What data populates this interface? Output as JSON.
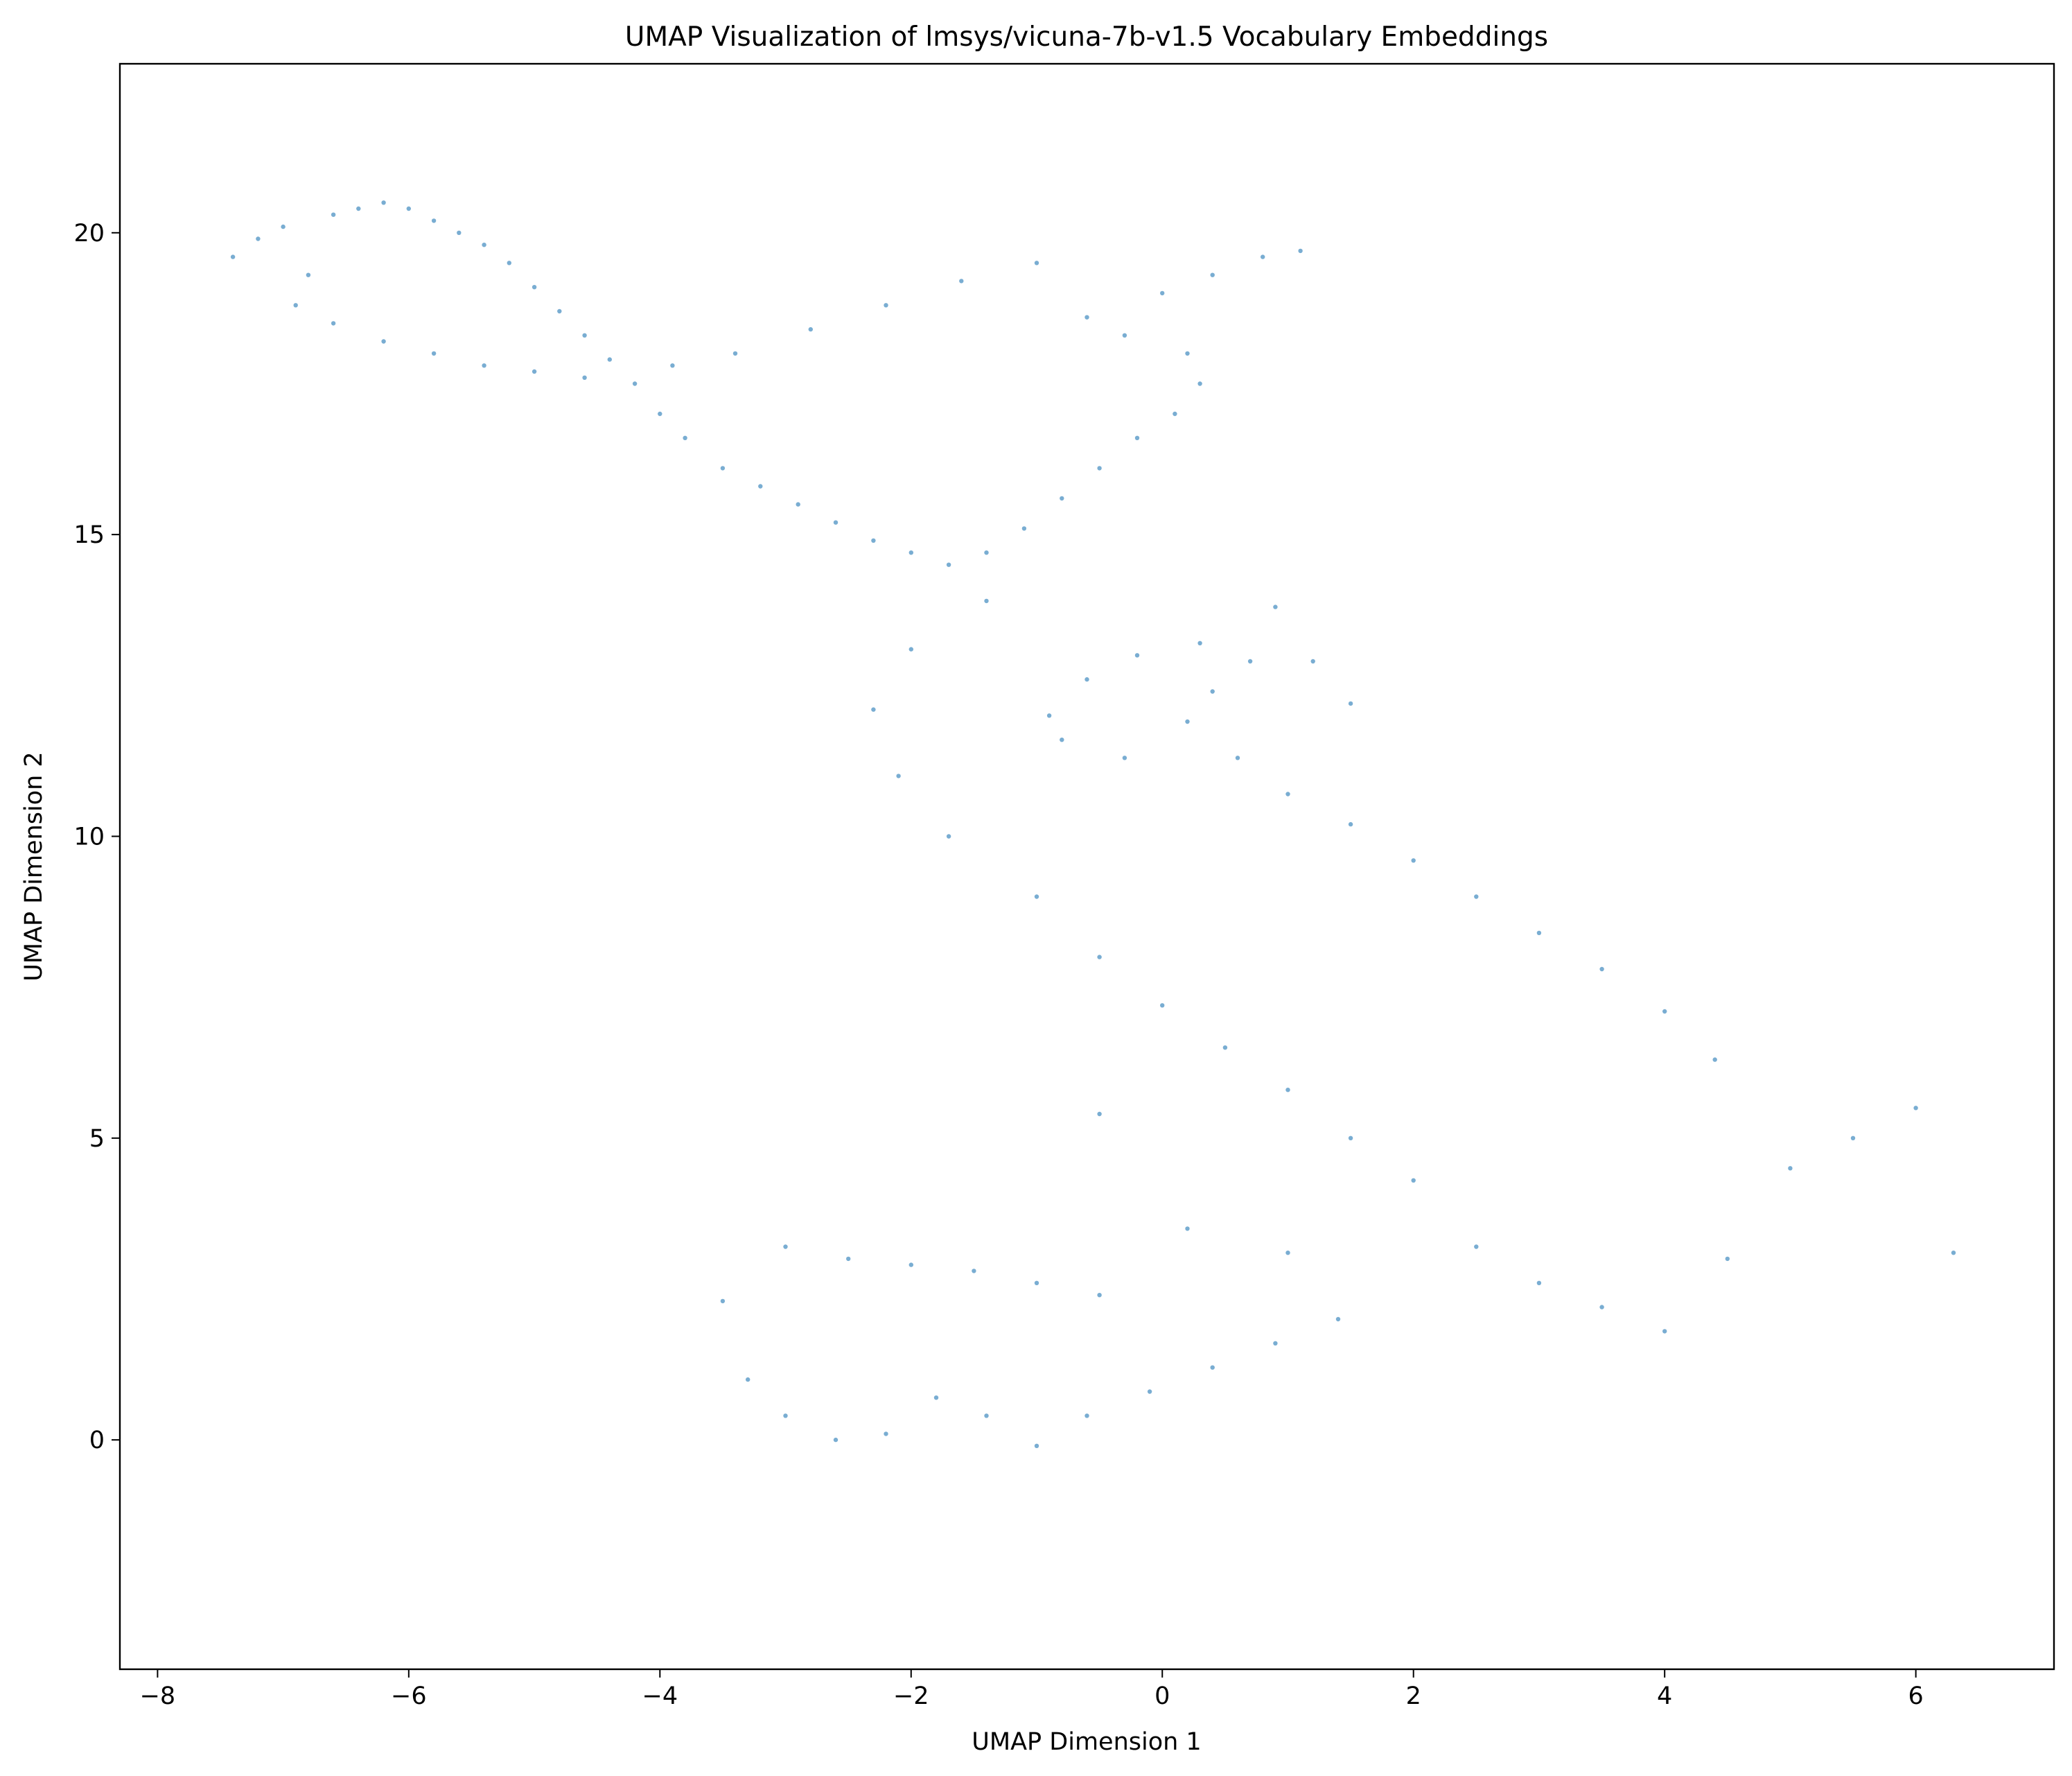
{
  "chart_data": {
    "type": "scatter",
    "title": "UMAP Visualization of lmsys/vicuna-7b-v1.5 Vocabulary Embeddings",
    "xlabel": "UMAP Dimension 1",
    "ylabel": "UMAP Dimension 2",
    "xlim": [
      -8.3,
      7.1
    ],
    "ylim": [
      -3.8,
      22.8
    ],
    "xticks": [
      -8,
      -6,
      -4,
      -2,
      0,
      2,
      4,
      6
    ],
    "yticks": [
      0,
      5,
      10,
      15,
      20
    ],
    "xtick_labels": [
      "−8",
      "−6",
      "−4",
      "−2",
      "0",
      "2",
      "4",
      "6"
    ],
    "ytick_labels": [
      "0",
      "5",
      "10",
      "15",
      "20"
    ],
    "grid": false,
    "legend": "none",
    "point_color": "#1f77b4",
    "point_alpha": 0.6,
    "series": [
      {
        "points": [
          [
            -7.4,
            19.6
          ],
          [
            -7.2,
            19.9
          ],
          [
            -7.0,
            20.1
          ],
          [
            -6.8,
            19.3
          ],
          [
            -6.6,
            20.3
          ],
          [
            -6.4,
            20.4
          ],
          [
            -6.2,
            20.5
          ],
          [
            -6.0,
            20.4
          ],
          [
            -5.8,
            20.2
          ],
          [
            -5.6,
            20.0
          ],
          [
            -5.4,
            19.8
          ],
          [
            -5.2,
            19.5
          ],
          [
            -5.0,
            19.1
          ],
          [
            -4.8,
            18.7
          ],
          [
            -4.6,
            18.3
          ],
          [
            -4.4,
            17.9
          ],
          [
            -6.9,
            18.8
          ],
          [
            -6.6,
            18.5
          ],
          [
            -6.2,
            18.2
          ],
          [
            -5.8,
            18.0
          ],
          [
            -5.4,
            17.8
          ],
          [
            -5.0,
            17.7
          ],
          [
            -4.6,
            17.6
          ],
          [
            -4.2,
            17.5
          ],
          [
            -4.0,
            17.0
          ],
          [
            -3.8,
            16.6
          ],
          [
            -3.5,
            16.1
          ],
          [
            -3.2,
            15.8
          ],
          [
            -2.9,
            15.5
          ],
          [
            -2.6,
            15.2
          ],
          [
            -2.3,
            14.9
          ],
          [
            -2.0,
            14.7
          ],
          [
            -1.7,
            14.5
          ],
          [
            -1.4,
            14.7
          ],
          [
            -1.1,
            15.1
          ],
          [
            -0.8,
            15.6
          ],
          [
            -0.5,
            16.1
          ],
          [
            -0.2,
            16.6
          ],
          [
            0.1,
            17.0
          ],
          [
            0.3,
            17.5
          ],
          [
            0.2,
            18.0
          ],
          [
            -0.3,
            18.3
          ],
          [
            -0.6,
            18.6
          ],
          [
            0.0,
            19.0
          ],
          [
            0.4,
            19.3
          ],
          [
            0.8,
            19.6
          ],
          [
            1.1,
            19.7
          ],
          [
            -1.0,
            19.5
          ],
          [
            -1.6,
            19.2
          ],
          [
            -2.2,
            18.8
          ],
          [
            -2.8,
            18.4
          ],
          [
            -3.4,
            18.0
          ],
          [
            -3.9,
            17.8
          ],
          [
            -0.9,
            12.0
          ],
          [
            -0.6,
            12.6
          ],
          [
            -0.2,
            13.0
          ],
          [
            0.3,
            13.2
          ],
          [
            0.7,
            12.9
          ],
          [
            0.4,
            12.4
          ],
          [
            0.2,
            11.9
          ],
          [
            -0.3,
            11.3
          ],
          [
            -0.8,
            11.6
          ],
          [
            0.6,
            11.3
          ],
          [
            1.0,
            10.7
          ],
          [
            1.5,
            10.2
          ],
          [
            2.0,
            9.6
          ],
          [
            2.5,
            9.0
          ],
          [
            3.0,
            8.4
          ],
          [
            3.5,
            7.8
          ],
          [
            4.0,
            7.1
          ],
          [
            4.4,
            6.3
          ],
          [
            1.2,
            12.9
          ],
          [
            1.5,
            12.2
          ],
          [
            0.9,
            13.8
          ],
          [
            -1.4,
            13.9
          ],
          [
            -2.0,
            13.1
          ],
          [
            -2.3,
            12.1
          ],
          [
            -2.1,
            11.0
          ],
          [
            -1.7,
            10.0
          ],
          [
            -1.0,
            9.0
          ],
          [
            -0.5,
            8.0
          ],
          [
            0.0,
            7.2
          ],
          [
            0.5,
            6.5
          ],
          [
            1.0,
            5.8
          ],
          [
            1.5,
            5.0
          ],
          [
            2.0,
            4.3
          ],
          [
            -0.5,
            5.4
          ],
          [
            -3.5,
            2.3
          ],
          [
            -3.3,
            1.0
          ],
          [
            -3.0,
            0.4
          ],
          [
            -2.6,
            0.0
          ],
          [
            -2.2,
            0.1
          ],
          [
            -1.8,
            0.7
          ],
          [
            -1.4,
            0.4
          ],
          [
            -1.0,
            -0.1
          ],
          [
            -0.6,
            0.4
          ],
          [
            -0.1,
            0.8
          ],
          [
            0.4,
            1.2
          ],
          [
            0.9,
            1.6
          ],
          [
            1.4,
            2.0
          ],
          [
            -3.0,
            3.2
          ],
          [
            -2.5,
            3.0
          ],
          [
            -2.0,
            2.9
          ],
          [
            -1.5,
            2.8
          ],
          [
            -1.0,
            2.6
          ],
          [
            -0.5,
            2.4
          ],
          [
            0.2,
            3.5
          ],
          [
            1.0,
            3.1
          ],
          [
            2.5,
            3.2
          ],
          [
            3.0,
            2.6
          ],
          [
            3.5,
            2.2
          ],
          [
            4.0,
            1.8
          ],
          [
            4.5,
            3.0
          ],
          [
            5.0,
            4.5
          ],
          [
            5.5,
            5.0
          ],
          [
            6.0,
            5.5
          ],
          [
            6.3,
            3.1
          ]
        ]
      }
    ]
  }
}
